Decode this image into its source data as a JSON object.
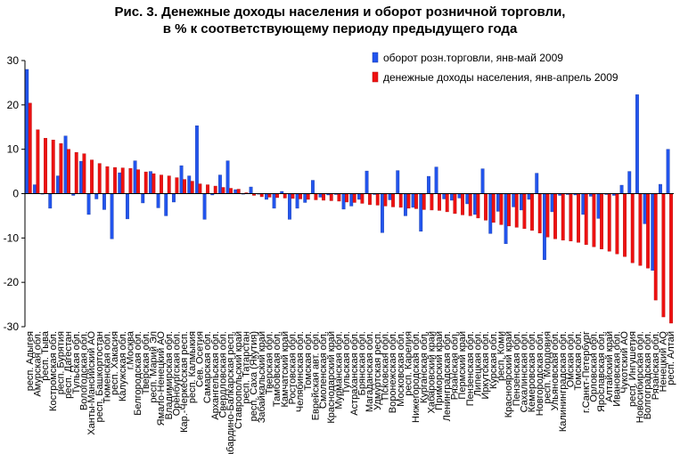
{
  "chart_data": {
    "type": "bar",
    "title": [
      "Рис. 3. Денежные доходы населения и оборот розничной торговли,",
      "в % к соответствующему периоду предыдущего года"
    ],
    "ylim": [
      -30,
      30
    ],
    "yticks": [
      30,
      20,
      10,
      0,
      -10,
      -20,
      -30
    ],
    "legend_position": "top-right",
    "series": [
      {
        "name": "оборот розн.торговли, янв-май 2009",
        "color": "#2255ee"
      },
      {
        "name": "денежные доходы населения, янв-апрель 2009",
        "color": "#ee1111"
      }
    ],
    "categories": [
      "респ. Адыгея",
      "Амурская обл.",
      "респ. Тыва",
      "Костромская обл.",
      "респ. Бурятия",
      "респ. Дагестан",
      "Тульская обл.",
      "Вологодская обл.",
      "Ханты-Мансийский АО",
      "респ. Башкортостан",
      "Тюменская обл.",
      "респ. Хакасия",
      "Калужская обл.",
      "г.Москва",
      "Белгородская обл.",
      "Тверская обл.",
      "респ. Марий Эл",
      "Ямало-Ненецкий АО",
      "Владимирская обл.",
      "Оренбургская обл.",
      "Кар.-Черкесская респ.",
      "респ. Калмыкия",
      "Сев. Осетия",
      "Самарская обл.",
      "Архангельская обл.",
      "Свердловская обл.",
      "Кабардино-Балкарская респ.",
      "Ставропольский край",
      "респ. Татарстан",
      "респ. Саха (Якутия)",
      "Забайкальский край",
      "Тверская обл.",
      "Тамбовская обл.",
      "Камчатский край",
      "Ростовская обл.",
      "Челябинская обл.",
      "Томская обл.",
      "Еврейская авт. обл.",
      "Смоленская обл.",
      "Краснодарский край",
      "Мурманская обл.",
      "Тульская обл.",
      "Астраханская обл.",
      "Брянская обл.",
      "Магаданская обл.",
      "Удмуртская респ.",
      "Псковская обл.",
      "Воронежская обл.",
      "Московская обл.",
      "респ. Карелия",
      "Нижегородская обл.",
      "Курганская обл.",
      "Хабаровский край",
      "Приморский край",
      "Ленинградская обл.",
      "Рязанская обл.",
      "Пермский край",
      "Пензенская обл.",
      "Липецкая обл.",
      "Иркутская обл.",
      "Курская обл.",
      "респ. Коми",
      "Красноярский край",
      "Пензенская обл.",
      "Сахалинская обл.",
      "Кемеровская обл.",
      "Новгородская обл.",
      "респ. Мордовия",
      "Ульяновская обл.",
      "Калининградская обл.",
      "Омская обл.",
      "Томская обл.",
      "г.Санкт-Петербург",
      "Орловская обл.",
      "Ярославская обл.",
      "Алтайский край",
      "Ивановская обл.",
      "Чукотский АО",
      "респ. Ингушетия",
      "Новосибирская обл.",
      "Волгоградская обл.",
      "Рязанская обл.",
      "Ненецкий АО",
      "респ. Алтай"
    ],
    "retail": [
      28.0,
      2.0,
      0.0,
      -3.3,
      4.0,
      13.0,
      -0.4,
      7.3,
      -4.7,
      -1.2,
      -3.6,
      -10.2,
      4.7,
      -5.7,
      7.4,
      -2.1,
      5.0,
      -3.2,
      -5.0,
      -1.9,
      6.3,
      4.0,
      15.3,
      -5.8,
      -0.3,
      4.2,
      7.4,
      0.9,
      0.0,
      1.5,
      0.0,
      -1.3,
      -3.3,
      0.5,
      -5.8,
      -3.3,
      -2.0,
      3.0,
      -0.8,
      -0.3,
      -0.2,
      -3.5,
      -2.8,
      -1.3,
      5.1,
      -0.2,
      -8.8,
      -1.4,
      5.2,
      -5.0,
      -3.1,
      -8.5,
      3.9,
      6.0,
      -1.2,
      -1.5,
      -1.0,
      -2.3,
      -4.7,
      5.6,
      -9.0,
      -4.0,
      -11.3,
      -3.0,
      -3.7,
      -1.3,
      4.6,
      -14.9,
      -4.1,
      -0.4,
      -0.2,
      -0.3,
      -4.7,
      -0.6,
      -5.6,
      -0.2,
      -0.4,
      1.9,
      5.0,
      22.3,
      -6.8,
      -17.3,
      2.1,
      10.0
    ],
    "income": [
      20.4,
      14.4,
      12.5,
      12.1,
      11.3,
      10.0,
      9.3,
      9.0,
      7.6,
      6.8,
      6.1,
      5.9,
      5.8,
      5.7,
      5.4,
      4.9,
      4.5,
      4.2,
      4.0,
      3.6,
      3.2,
      2.8,
      2.2,
      2.0,
      1.7,
      1.4,
      1.2,
      1.0,
      0.2,
      -0.4,
      -0.7,
      -0.8,
      -0.9,
      -1.0,
      -1.1,
      -1.2,
      -1.3,
      -1.4,
      -1.5,
      -1.6,
      -1.7,
      -1.9,
      -2.0,
      -2.2,
      -2.5,
      -2.6,
      -2.8,
      -3.0,
      -3.1,
      -3.3,
      -3.4,
      -3.6,
      -3.7,
      -3.8,
      -4.1,
      -4.5,
      -4.8,
      -5.0,
      -5.5,
      -6.0,
      -6.5,
      -7.0,
      -7.3,
      -7.6,
      -7.9,
      -8.3,
      -8.9,
      -9.8,
      -10.2,
      -10.5,
      -10.7,
      -11.0,
      -11.5,
      -12.0,
      -12.5,
      -13.0,
      -13.6,
      -14.2,
      -15.6,
      -16.2,
      -16.8,
      -24.0,
      -27.8,
      -29.2
    ]
  }
}
